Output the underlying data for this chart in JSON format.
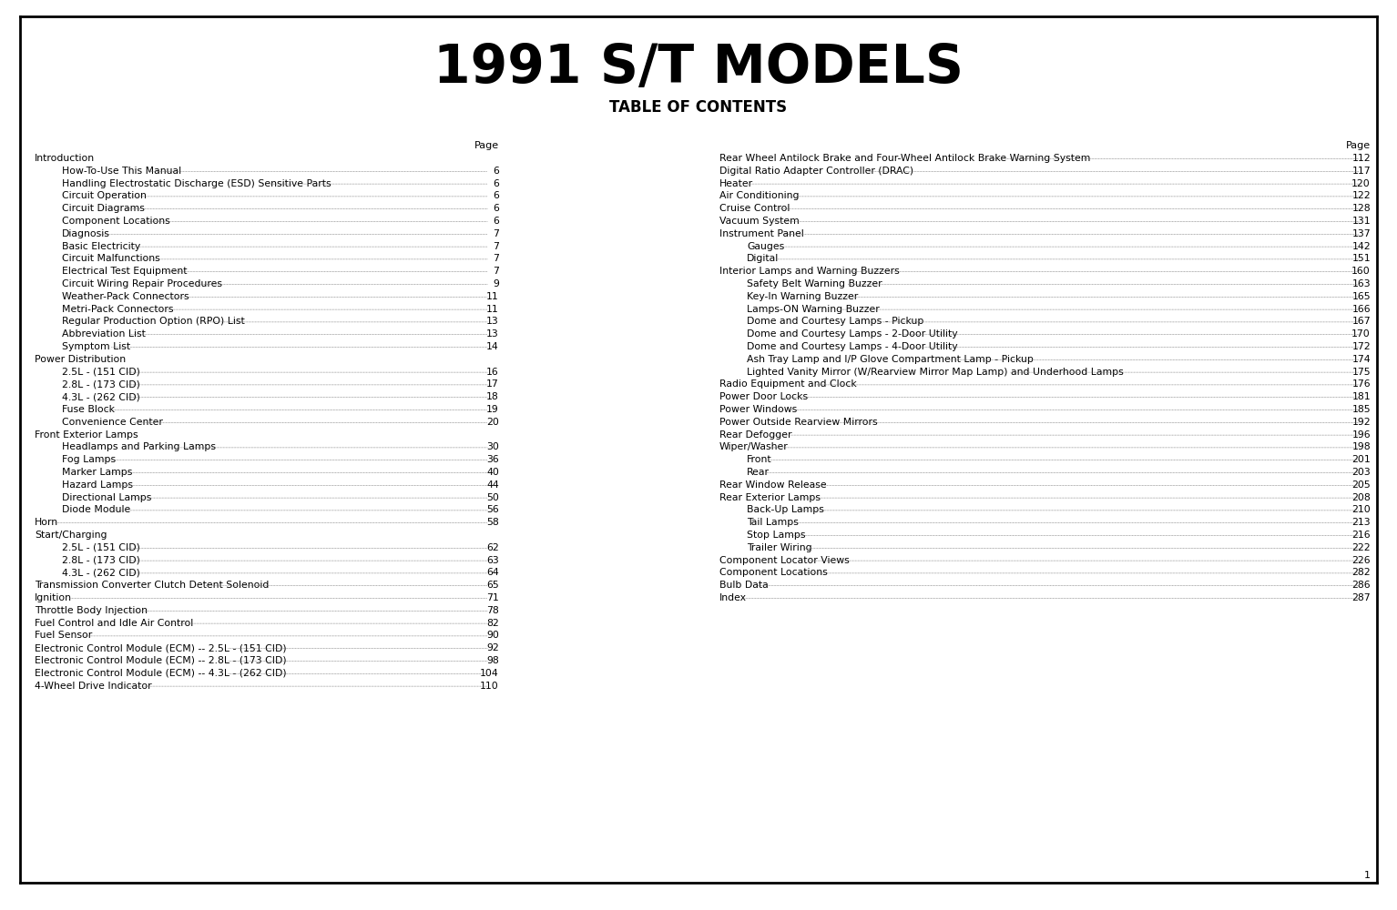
{
  "title": "1991 S/T MODELS",
  "subtitle": "TABLE OF CONTENTS",
  "bg_color": "#ffffff",
  "border_color": "#000000",
  "page_number": "1",
  "left_column": [
    {
      "text": "Introduction",
      "indent": 0,
      "page": "",
      "bold": false
    },
    {
      "text": "How-To-Use This Manual",
      "indent": 1,
      "page": "6"
    },
    {
      "text": "Handling Electrostatic Discharge (ESD) Sensitive Parts",
      "indent": 1,
      "page": "6"
    },
    {
      "text": "Circuit Operation",
      "indent": 1,
      "page": "6"
    },
    {
      "text": "Circuit Diagrams",
      "indent": 1,
      "page": "6"
    },
    {
      "text": "Component Locations",
      "indent": 1,
      "page": "6"
    },
    {
      "text": "Diagnosis",
      "indent": 1,
      "page": "7"
    },
    {
      "text": "Basic Electricity",
      "indent": 1,
      "page": "7"
    },
    {
      "text": "Circuit Malfunctions",
      "indent": 1,
      "page": "7"
    },
    {
      "text": "Electrical Test Equipment",
      "indent": 1,
      "page": "7"
    },
    {
      "text": "Circuit Wiring Repair Procedures",
      "indent": 1,
      "page": "9"
    },
    {
      "text": "Weather-Pack Connectors",
      "indent": 1,
      "page": "11"
    },
    {
      "text": "Metri-Pack Connectors",
      "indent": 1,
      "page": "11"
    },
    {
      "text": "Regular Production Option (RPO) List",
      "indent": 1,
      "page": "13"
    },
    {
      "text": "Abbreviation List",
      "indent": 1,
      "page": "13"
    },
    {
      "text": "Symptom List",
      "indent": 1,
      "page": "14"
    },
    {
      "text": "Power Distribution",
      "indent": 0,
      "page": "",
      "bold": false
    },
    {
      "text": "2.5L - (151 CID)",
      "indent": 1,
      "page": "16"
    },
    {
      "text": "2.8L - (173 CID)",
      "indent": 1,
      "page": "17"
    },
    {
      "text": "4.3L - (262 CID)",
      "indent": 1,
      "page": "18"
    },
    {
      "text": "Fuse Block",
      "indent": 1,
      "page": "19"
    },
    {
      "text": "Convenience Center",
      "indent": 1,
      "page": "20"
    },
    {
      "text": "Front Exterior Lamps",
      "indent": 0,
      "page": "",
      "bold": false
    },
    {
      "text": "Headlamps and Parking Lamps",
      "indent": 1,
      "page": "30"
    },
    {
      "text": "Fog Lamps",
      "indent": 1,
      "page": "36"
    },
    {
      "text": "Marker Lamps",
      "indent": 1,
      "page": "40"
    },
    {
      "text": "Hazard Lamps",
      "indent": 1,
      "page": "44"
    },
    {
      "text": "Directional Lamps",
      "indent": 1,
      "page": "50"
    },
    {
      "text": "Diode Module",
      "indent": 1,
      "page": "56"
    },
    {
      "text": "Horn",
      "indent": 0,
      "page": "58",
      "bold": false
    },
    {
      "text": "Start/Charging",
      "indent": 0,
      "page": "",
      "bold": false
    },
    {
      "text": "2.5L - (151 CID)",
      "indent": 1,
      "page": "62"
    },
    {
      "text": "2.8L - (173 CID)",
      "indent": 1,
      "page": "63"
    },
    {
      "text": "4.3L - (262 CID)",
      "indent": 1,
      "page": "64"
    },
    {
      "text": "Transmission Converter Clutch Detent Solenoid",
      "indent": 0,
      "page": "65",
      "bold": false
    },
    {
      "text": "Ignition",
      "indent": 0,
      "page": "71",
      "bold": false
    },
    {
      "text": "Throttle Body Injection",
      "indent": 0,
      "page": "78",
      "bold": false
    },
    {
      "text": "Fuel Control and Idle Air Control",
      "indent": 0,
      "page": "82",
      "bold": false
    },
    {
      "text": "Fuel Sensor",
      "indent": 0,
      "page": "90",
      "bold": false
    },
    {
      "text": "Electronic Control Module (ECM) -- 2.5L - (151 CID)",
      "indent": 0,
      "page": "92",
      "bold": false
    },
    {
      "text": "Electronic Control Module (ECM) -- 2.8L - (173 CID)",
      "indent": 0,
      "page": "98",
      "bold": false
    },
    {
      "text": "Electronic Control Module (ECM) -- 4.3L - (262 CID)",
      "indent": 0,
      "page": "104",
      "bold": false
    },
    {
      "text": "4-Wheel Drive Indicator",
      "indent": 0,
      "page": "110",
      "bold": false
    }
  ],
  "right_column": [
    {
      "text": "Rear Wheel Antilock Brake and Four-Wheel Antilock Brake Warning System",
      "indent": 0,
      "page": "112",
      "bold": false
    },
    {
      "text": "Digital Ratio Adapter Controller (DRAC)",
      "indent": 0,
      "page": "117",
      "bold": false
    },
    {
      "text": "Heater",
      "indent": 0,
      "page": "120",
      "bold": false
    },
    {
      "text": "Air Conditioning",
      "indent": 0,
      "page": "122",
      "bold": false
    },
    {
      "text": "Cruise Control",
      "indent": 0,
      "page": "128",
      "bold": false
    },
    {
      "text": "Vacuum System",
      "indent": 0,
      "page": "131",
      "bold": false
    },
    {
      "text": "Instrument Panel",
      "indent": 0,
      "page": "137",
      "bold": false
    },
    {
      "text": "Gauges",
      "indent": 1,
      "page": "142"
    },
    {
      "text": "Digital",
      "indent": 1,
      "page": "151"
    },
    {
      "text": "Interior Lamps and Warning Buzzers",
      "indent": 0,
      "page": "160",
      "bold": false
    },
    {
      "text": "Safety Belt Warning Buzzer",
      "indent": 1,
      "page": "163"
    },
    {
      "text": "Key-In Warning Buzzer",
      "indent": 1,
      "page": "165"
    },
    {
      "text": "Lamps-ON Warning Buzzer",
      "indent": 1,
      "page": "166"
    },
    {
      "text": "Dome and Courtesy Lamps - Pickup",
      "indent": 1,
      "page": "167"
    },
    {
      "text": "Dome and Courtesy Lamps - 2-Door Utility",
      "indent": 1,
      "page": "170"
    },
    {
      "text": "Dome and Courtesy Lamps - 4-Door Utility",
      "indent": 1,
      "page": "172"
    },
    {
      "text": "Ash Tray Lamp and I/P Glove Compartment Lamp - Pickup",
      "indent": 1,
      "page": "174"
    },
    {
      "text": "Lighted Vanity Mirror (W/Rearview Mirror Map Lamp) and Underhood Lamps",
      "indent": 1,
      "page": "175"
    },
    {
      "text": "Radio Equipment and Clock",
      "indent": 0,
      "page": "176",
      "bold": false
    },
    {
      "text": "Power Door Locks",
      "indent": 0,
      "page": "181",
      "bold": false
    },
    {
      "text": "Power Windows",
      "indent": 0,
      "page": "185",
      "bold": false
    },
    {
      "text": "Power Outside Rearview Mirrors",
      "indent": 0,
      "page": "192",
      "bold": false
    },
    {
      "text": "Rear Defogger",
      "indent": 0,
      "page": "196",
      "bold": false
    },
    {
      "text": "Wiper/Washer",
      "indent": 0,
      "page": "198",
      "bold": false
    },
    {
      "text": "Front",
      "indent": 1,
      "page": "201"
    },
    {
      "text": "Rear",
      "indent": 1,
      "page": "203"
    },
    {
      "text": "Rear Window Release",
      "indent": 0,
      "page": "205",
      "bold": false
    },
    {
      "text": "Rear Exterior Lamps",
      "indent": 0,
      "page": "208",
      "bold": false
    },
    {
      "text": "Back-Up Lamps",
      "indent": 1,
      "page": "210"
    },
    {
      "text": "Tail Lamps",
      "indent": 1,
      "page": "213"
    },
    {
      "text": "Stop Lamps",
      "indent": 1,
      "page": "216"
    },
    {
      "text": "Trailer Wiring",
      "indent": 1,
      "page": "222"
    },
    {
      "text": "Component Locator Views",
      "indent": 0,
      "page": "226",
      "bold": false
    },
    {
      "text": "Component Locations",
      "indent": 0,
      "page": "282",
      "bold": false
    },
    {
      "text": "Bulb Data",
      "indent": 0,
      "page": "286",
      "bold": false
    },
    {
      "text": "Index",
      "indent": 0,
      "page": "287",
      "bold": false
    }
  ]
}
